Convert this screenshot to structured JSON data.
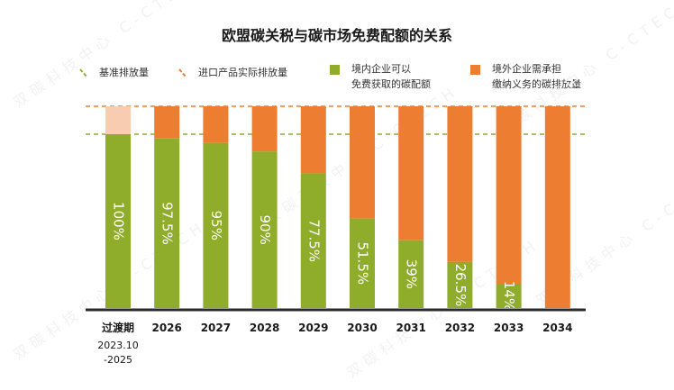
{
  "chart_data": {
    "type": "bar",
    "title": "欧盟碳关税与碳市场免费配额的关系",
    "categories": [
      "过渡期",
      "2026",
      "2027",
      "2028",
      "2029",
      "2030",
      "2031",
      "2032",
      "2033",
      "2034"
    ],
    "category_sublabel": {
      "index": 0,
      "lines": [
        "2023.10",
        "-2025"
      ]
    },
    "series": [
      {
        "name": "境内企业可以免费获取的碳配额",
        "color": "#8fac2b",
        "values": [
          100,
          97.5,
          95,
          90,
          77.5,
          51.5,
          39,
          26.5,
          14,
          0
        ],
        "labels": [
          "100%",
          "97.5%",
          "95%",
          "90%",
          "77.5%",
          "51.5%",
          "39%",
          "26.5%",
          "14%",
          ""
        ]
      },
      {
        "name": "境外企业需承担缴纳义务的碳排放量",
        "color": "#ed7d31",
        "values": [
          0,
          2.5,
          5,
          10,
          22.5,
          48.5,
          61,
          73.5,
          86,
          100
        ]
      }
    ],
    "first_bar_top_color": "#f8ccb0",
    "reference_lines": [
      {
        "name": "基准排放量",
        "color": "#8fac2b",
        "style": "dashed",
        "level": 100
      },
      {
        "name": "进口产品实际排放量",
        "color": "#ed7d31",
        "style": "dashed"
      }
    ],
    "legend": {
      "placement": "top",
      "items": [
        {
          "label": "基准排放量",
          "kind": "dash",
          "color": "#8fac2b"
        },
        {
          "label": "进口产品实际排放量",
          "kind": "dash",
          "color": "#ed7d31"
        },
        {
          "label": "境内企业可以\n免费获取的碳配额",
          "kind": "box",
          "color": "#8fac2b"
        },
        {
          "label": "境外企业需承担\n缴纳义务的碳排放量",
          "kind": "box",
          "color": "#ed7d31"
        }
      ]
    },
    "grid": false
  },
  "watermark": "双碳科技中心 C-CTECH"
}
